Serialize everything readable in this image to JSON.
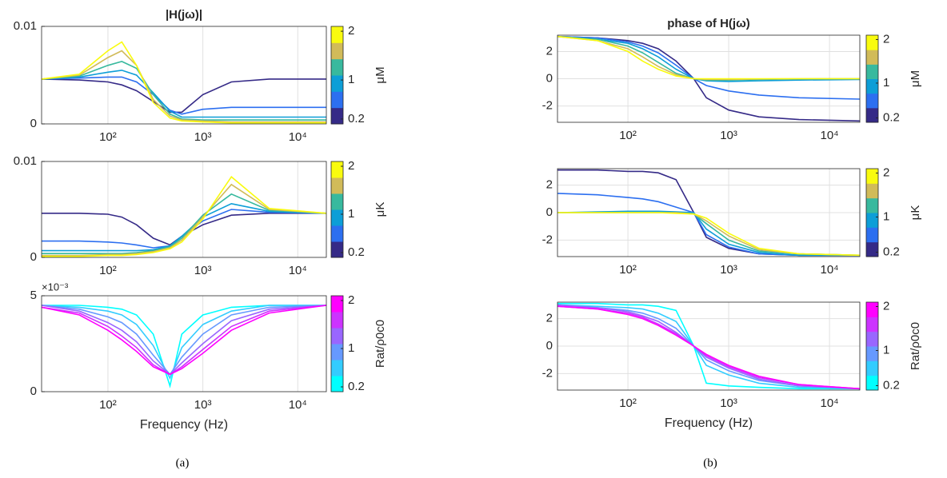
{
  "chart_data": [
    {
      "type": "line",
      "title": "|H(jω)|",
      "log_x": true,
      "grid": "x",
      "x": [
        20,
        50,
        100,
        140,
        200,
        300,
        450,
        600,
        1000,
        2000,
        5000,
        20000
      ],
      "xlim": [
        20,
        20000
      ],
      "xticks": [
        {
          "value": 100,
          "label": "10²"
        },
        {
          "value": 1000,
          "label": "10³"
        },
        {
          "value": 10000,
          "label": "10⁴"
        }
      ],
      "ylim": [
        0,
        0.01
      ],
      "yticks": [
        0,
        0.01
      ],
      "colorbar": {
        "label": "μM",
        "lim": [
          0.1,
          2.1
        ],
        "ticks": [
          0.2,
          1,
          2
        ]
      },
      "series": [
        {
          "color": "#352a87",
          "values": [
            0.0046,
            0.0045,
            0.0043,
            0.004,
            0.0034,
            0.0023,
            0.0012,
            0.0012,
            0.003,
            0.0043,
            0.0046,
            0.0046
          ]
        },
        {
          "color": "#2c6ff0",
          "values": [
            0.0046,
            0.0047,
            0.0048,
            0.0048,
            0.0043,
            0.003,
            0.0014,
            0.001,
            0.0015,
            0.0017,
            0.0017,
            0.0017
          ]
        },
        {
          "color": "#0d9ed7",
          "values": [
            0.0046,
            0.0048,
            0.0053,
            0.0055,
            0.005,
            0.0032,
            0.0013,
            0.0007,
            0.0007,
            0.0007,
            0.0007,
            0.0007
          ]
        },
        {
          "color": "#38b99e",
          "values": [
            0.0046,
            0.0049,
            0.006,
            0.0064,
            0.0057,
            0.003,
            0.001,
            0.0005,
            0.0004,
            0.0004,
            0.0004,
            0.0004
          ]
        },
        {
          "color": "#d1bb59",
          "values": [
            0.0046,
            0.005,
            0.0068,
            0.0075,
            0.006,
            0.0025,
            0.0008,
            0.0004,
            0.0003,
            0.0002,
            0.0002,
            0.0002
          ]
        },
        {
          "color": "#f9fb0e",
          "values": [
            0.0046,
            0.0051,
            0.0075,
            0.0084,
            0.006,
            0.0022,
            0.0006,
            0.0003,
            0.0002,
            0.0001,
            0.0001,
            0.0001
          ]
        }
      ]
    },
    {
      "type": "line",
      "log_x": true,
      "grid": "x",
      "x": [
        20,
        50,
        100,
        140,
        200,
        300,
        450,
        600,
        1000,
        2000,
        5000,
        20000
      ],
      "xlim": [
        20,
        20000
      ],
      "xticks": [
        {
          "value": 100,
          "label": "10²"
        },
        {
          "value": 1000,
          "label": "10³"
        },
        {
          "value": 10000,
          "label": "10⁴"
        }
      ],
      "ylim": [
        0,
        0.01
      ],
      "yticks": [
        0,
        0.01
      ],
      "colorbar": {
        "label": "μK",
        "lim": [
          0.1,
          2.1
        ],
        "ticks": [
          0.2,
          1,
          2
        ]
      },
      "series": [
        {
          "color": "#352a87",
          "values": [
            0.0046,
            0.0046,
            0.0045,
            0.0042,
            0.0034,
            0.002,
            0.0013,
            0.0022,
            0.0034,
            0.0044,
            0.0046,
            0.0046
          ]
        },
        {
          "color": "#2c6ff0",
          "values": [
            0.0017,
            0.0017,
            0.0016,
            0.0015,
            0.0013,
            0.001,
            0.0012,
            0.0022,
            0.0038,
            0.005,
            0.0047,
            0.0046
          ]
        },
        {
          "color": "#0d9ed7",
          "values": [
            0.0007,
            0.0007,
            0.0007,
            0.0007,
            0.0007,
            0.0008,
            0.0012,
            0.0022,
            0.0042,
            0.0056,
            0.0048,
            0.0046
          ]
        },
        {
          "color": "#38b99e",
          "values": [
            0.0004,
            0.0004,
            0.0004,
            0.0004,
            0.0005,
            0.0007,
            0.0011,
            0.002,
            0.0044,
            0.0066,
            0.0049,
            0.0046
          ]
        },
        {
          "color": "#d1bb59",
          "values": [
            0.0002,
            0.0002,
            0.0003,
            0.0003,
            0.0004,
            0.0006,
            0.001,
            0.0018,
            0.0042,
            0.0076,
            0.005,
            0.0046
          ]
        },
        {
          "color": "#f9fb0e",
          "values": [
            0.0001,
            0.0001,
            0.0002,
            0.0002,
            0.0003,
            0.0005,
            0.0009,
            0.0016,
            0.004,
            0.0084,
            0.0051,
            0.0046
          ]
        }
      ]
    },
    {
      "type": "line",
      "log_x": true,
      "grid": "x",
      "xlabel": "Frequency (Hz)",
      "annotation": "×10⁻³",
      "x": [
        20,
        50,
        100,
        140,
        200,
        300,
        450,
        600,
        1000,
        2000,
        5000,
        20000
      ],
      "xlim": [
        20,
        20000
      ],
      "xticks": [
        {
          "value": 100,
          "label": "10²"
        },
        {
          "value": 1000,
          "label": "10³"
        },
        {
          "value": 10000,
          "label": "10⁴"
        }
      ],
      "ylim": [
        0,
        5
      ],
      "yticks": [
        0,
        5
      ],
      "colorbar": {
        "label": "Rat/ρ0c0",
        "lim": [
          0.1,
          2.1
        ],
        "ticks": [
          0.2,
          1,
          2
        ]
      },
      "series": [
        {
          "color": "#00ffff",
          "values": [
            4.5,
            4.5,
            4.4,
            4.3,
            4.0,
            3.0,
            0.3,
            3.0,
            4.0,
            4.4,
            4.5,
            4.5
          ]
        },
        {
          "color": "#33ccff",
          "values": [
            4.5,
            4.4,
            4.2,
            4.0,
            3.5,
            2.4,
            0.7,
            2.3,
            3.5,
            4.2,
            4.5,
            4.5
          ]
        },
        {
          "color": "#6699ff",
          "values": [
            4.5,
            4.3,
            3.9,
            3.6,
            3.0,
            1.9,
            0.9,
            1.8,
            3.0,
            4.0,
            4.4,
            4.5
          ]
        },
        {
          "color": "#9966ff",
          "values": [
            4.5,
            4.2,
            3.6,
            3.2,
            2.6,
            1.6,
            0.9,
            1.5,
            2.5,
            3.7,
            4.3,
            4.5
          ]
        },
        {
          "color": "#cc33ff",
          "values": [
            4.4,
            4.1,
            3.4,
            2.9,
            2.3,
            1.4,
            0.9,
            1.3,
            2.2,
            3.4,
            4.2,
            4.5
          ]
        },
        {
          "color": "#ff00ff",
          "values": [
            4.4,
            4.0,
            3.2,
            2.7,
            2.1,
            1.3,
            0.9,
            1.2,
            2.0,
            3.2,
            4.1,
            4.5
          ]
        }
      ]
    },
    {
      "type": "line",
      "title": "phase of H(jω)",
      "log_x": true,
      "grid": "xy",
      "x": [
        20,
        50,
        100,
        140,
        200,
        300,
        450,
        600,
        1000,
        2000,
        5000,
        20000
      ],
      "xlim": [
        20,
        20000
      ],
      "xticks": [
        {
          "value": 100,
          "label": "10²"
        },
        {
          "value": 1000,
          "label": "10³"
        },
        {
          "value": 10000,
          "label": "10⁴"
        }
      ],
      "ylim": [
        -3.2,
        3.2
      ],
      "yticks": [
        -2,
        0,
        2
      ],
      "colorbar": {
        "label": "μM",
        "lim": [
          0.1,
          2.1
        ],
        "ticks": [
          0.2,
          1,
          2
        ]
      },
      "series": [
        {
          "color": "#352a87",
          "values": [
            3.1,
            3.0,
            2.8,
            2.6,
            2.2,
            1.3,
            0.0,
            -1.4,
            -2.3,
            -2.8,
            -3.0,
            -3.1
          ]
        },
        {
          "color": "#2c6ff0",
          "values": [
            3.1,
            3.0,
            2.7,
            2.4,
            1.9,
            1.0,
            0.0,
            -0.5,
            -0.9,
            -1.2,
            -1.4,
            -1.5
          ]
        },
        {
          "color": "#0d9ed7",
          "values": [
            3.1,
            2.9,
            2.6,
            2.2,
            1.6,
            0.7,
            0.0,
            -0.15,
            -0.2,
            -0.15,
            -0.1,
            -0.05
          ]
        },
        {
          "color": "#38b99e",
          "values": [
            3.1,
            2.9,
            2.4,
            1.9,
            1.2,
            0.4,
            0.0,
            -0.1,
            -0.1,
            -0.05,
            -0.02,
            0.0
          ]
        },
        {
          "color": "#d1bb59",
          "values": [
            3.1,
            2.8,
            2.2,
            1.6,
            0.9,
            0.3,
            0.0,
            -0.05,
            -0.05,
            -0.02,
            0.0,
            0.0
          ]
        },
        {
          "color": "#f9fb0e",
          "values": [
            3.1,
            2.8,
            2.0,
            1.3,
            0.7,
            0.2,
            0.0,
            0.0,
            0.0,
            0.0,
            0.0,
            0.0
          ]
        }
      ]
    },
    {
      "type": "line",
      "log_x": true,
      "grid": "xy",
      "x": [
        20,
        50,
        100,
        140,
        200,
        300,
        450,
        600,
        1000,
        2000,
        5000,
        20000
      ],
      "xlim": [
        20,
        20000
      ],
      "xticks": [
        {
          "value": 100,
          "label": "10²"
        },
        {
          "value": 1000,
          "label": "10³"
        },
        {
          "value": 10000,
          "label": "10⁴"
        }
      ],
      "ylim": [
        -3.2,
        3.2
      ],
      "yticks": [
        -2,
        0,
        2
      ],
      "colorbar": {
        "label": "μK",
        "lim": [
          0.1,
          2.1
        ],
        "ticks": [
          0.2,
          1,
          2
        ]
      },
      "series": [
        {
          "color": "#352a87",
          "values": [
            3.1,
            3.1,
            3.0,
            3.0,
            2.9,
            2.4,
            0.0,
            -1.8,
            -2.6,
            -3.0,
            -3.1,
            -3.1
          ]
        },
        {
          "color": "#2c6ff0",
          "values": [
            1.4,
            1.3,
            1.1,
            1.0,
            0.8,
            0.4,
            0.0,
            -1.6,
            -2.5,
            -3.0,
            -3.1,
            -3.1
          ]
        },
        {
          "color": "#0d9ed7",
          "values": [
            0.0,
            0.05,
            0.1,
            0.1,
            0.1,
            0.05,
            0.0,
            -1.2,
            -2.3,
            -2.9,
            -3.1,
            -3.1
          ]
        },
        {
          "color": "#38b99e",
          "values": [
            0.0,
            0.0,
            0.0,
            0.0,
            0.0,
            0.0,
            -0.1,
            -0.8,
            -2.0,
            -2.8,
            -3.0,
            -3.1
          ]
        },
        {
          "color": "#d1bb59",
          "values": [
            0.0,
            0.0,
            0.0,
            0.0,
            0.0,
            0.0,
            -0.1,
            -0.6,
            -1.7,
            -2.7,
            -3.0,
            -3.1
          ]
        },
        {
          "color": "#f9fb0e",
          "values": [
            0.0,
            0.0,
            0.0,
            0.0,
            0.0,
            -0.05,
            -0.1,
            -0.4,
            -1.5,
            -2.6,
            -3.0,
            -3.1
          ]
        }
      ]
    },
    {
      "type": "line",
      "log_x": true,
      "grid": "xy",
      "xlabel": "Frequency (Hz)",
      "x": [
        20,
        50,
        100,
        140,
        200,
        300,
        450,
        600,
        1000,
        2000,
        5000,
        20000
      ],
      "xlim": [
        20,
        20000
      ],
      "xticks": [
        {
          "value": 100,
          "label": "10²"
        },
        {
          "value": 1000,
          "label": "10³"
        },
        {
          "value": 10000,
          "label": "10⁴"
        }
      ],
      "ylim": [
        -3.2,
        3.2
      ],
      "yticks": [
        -2,
        0,
        2
      ],
      "colorbar": {
        "label": "Rat/ρ0c0",
        "lim": [
          0.1,
          2.1
        ],
        "ticks": [
          0.2,
          1,
          2
        ]
      },
      "series": [
        {
          "color": "#00ffff",
          "values": [
            3.1,
            3.1,
            3.0,
            3.0,
            2.9,
            2.6,
            0.0,
            -2.7,
            -2.9,
            -3.0,
            -3.1,
            -3.1
          ]
        },
        {
          "color": "#33ccff",
          "values": [
            3.0,
            2.9,
            2.8,
            2.7,
            2.4,
            1.8,
            0.0,
            -1.4,
            -2.1,
            -2.7,
            -3.0,
            -3.1
          ]
        },
        {
          "color": "#6699ff",
          "values": [
            3.0,
            2.8,
            2.6,
            2.4,
            2.0,
            1.3,
            0.0,
            -1.0,
            -1.8,
            -2.5,
            -2.9,
            -3.1
          ]
        },
        {
          "color": "#9966ff",
          "values": [
            3.0,
            2.8,
            2.5,
            2.2,
            1.8,
            1.0,
            0.0,
            -0.8,
            -1.6,
            -2.4,
            -2.9,
            -3.1
          ]
        },
        {
          "color": "#cc33ff",
          "values": [
            2.9,
            2.7,
            2.4,
            2.1,
            1.6,
            0.9,
            0.0,
            -0.7,
            -1.5,
            -2.3,
            -2.8,
            -3.1
          ]
        },
        {
          "color": "#ff00ff",
          "values": [
            2.9,
            2.7,
            2.3,
            2.0,
            1.5,
            0.8,
            0.0,
            -0.6,
            -1.4,
            -2.2,
            -2.8,
            -3.1
          ]
        }
      ]
    }
  ],
  "captions": [
    "(a)",
    "(b)"
  ]
}
